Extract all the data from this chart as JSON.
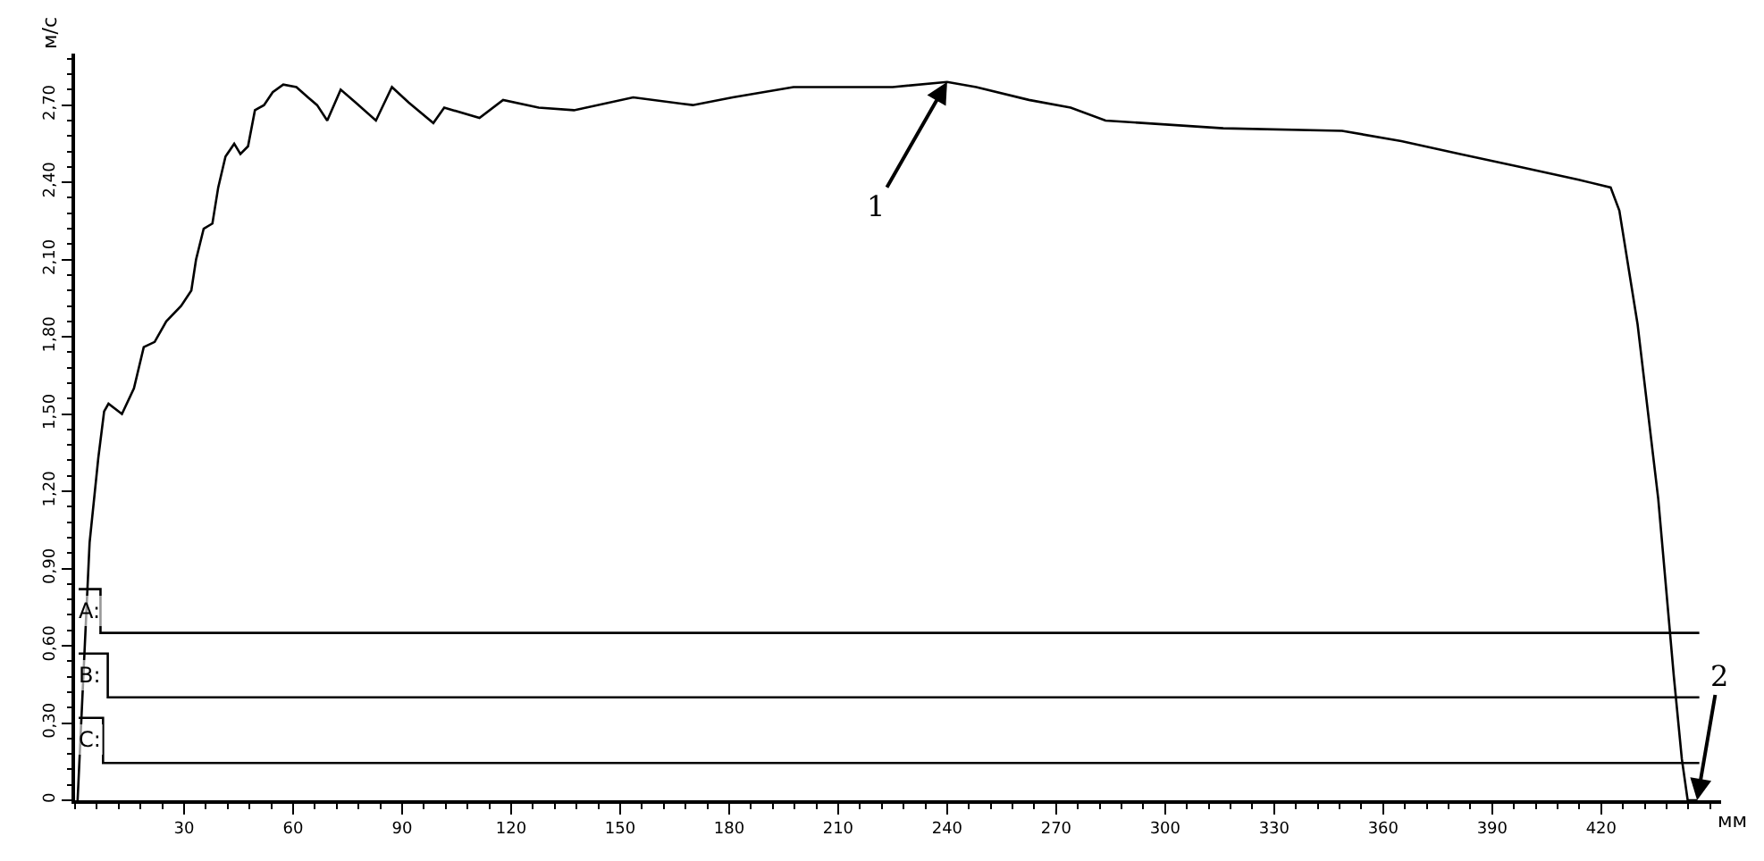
{
  "chart_data": {
    "type": "line",
    "xlabel": "мм",
    "ylabel": "м/с",
    "xlim": [
      0,
      453
    ],
    "ylim": [
      0,
      2.9
    ],
    "xticks": [
      30,
      60,
      90,
      120,
      150,
      180,
      210,
      240,
      270,
      300,
      330,
      360,
      390,
      420
    ],
    "yticks": [
      0,
      {
        "value": 0.3,
        "label": "0,30"
      },
      {
        "value": 0.6,
        "label": "0,60"
      },
      {
        "value": 0.9,
        "label": "0,90"
      },
      {
        "value": 1.2,
        "label": "1,20"
      },
      {
        "value": 1.5,
        "label": "1,50"
      },
      {
        "value": 1.8,
        "label": "1,80"
      },
      {
        "value": 2.1,
        "label": "2,10"
      },
      {
        "value": 2.4,
        "label": "2,40"
      },
      {
        "value": 2.7,
        "label": "2,70"
      }
    ],
    "legend": false,
    "marker": "none",
    "line_style": "solid",
    "series": [
      {
        "color": "#000000",
        "x": [
          0.7,
          4,
          6.4,
          8,
          9.2,
          12.9,
          16.2,
          18.9,
          21.9,
          25.1,
          29.2,
          32,
          33.3,
          35.4,
          37.8,
          39.4,
          41.4,
          43.8,
          45.5,
          47.6,
          49.5,
          52,
          54.4,
          57.3,
          60.9,
          64.1,
          66.6,
          69.4,
          73.1,
          77.2,
          82.8,
          87.2,
          91.8,
          98.6,
          101.6,
          111.3,
          117.8,
          127.6,
          137.3,
          153.6,
          170,
          181,
          197.7,
          212,
          225,
          240,
          248,
          262.5,
          274,
          283.6,
          316,
          348.7,
          365,
          381.2,
          397.5,
          413.8,
          422.6,
          425,
          430,
          435.7,
          440,
          442.2,
          443.8,
          446.4
        ],
        "values": [
          0,
          1.0,
          1.33,
          1.51,
          1.54,
          1.5,
          1.6,
          1.76,
          1.78,
          1.86,
          1.92,
          1.98,
          2.1,
          2.22,
          2.24,
          2.38,
          2.5,
          2.55,
          2.51,
          2.54,
          2.68,
          2.7,
          2.75,
          2.78,
          2.77,
          2.73,
          2.7,
          2.64,
          2.76,
          2.71,
          2.64,
          2.77,
          2.71,
          2.63,
          2.69,
          2.65,
          2.72,
          2.69,
          2.68,
          2.73,
          2.7,
          2.73,
          2.77,
          2.77,
          2.77,
          2.79,
          2.77,
          2.72,
          2.69,
          2.64,
          2.61,
          2.6,
          2.56,
          2.51,
          2.46,
          2.41,
          2.38,
          2.29,
          1.85,
          1.17,
          0.48,
          0.16,
          0,
          0
        ]
      },
      {
        "name": "A:",
        "color": "#000000",
        "x": [
          1,
          7,
          7,
          447
        ],
        "values": [
          0.82,
          0.82,
          0.65,
          0.65
        ]
      },
      {
        "name": "B:",
        "color": "#000000",
        "x": [
          1,
          9,
          9,
          447
        ],
        "values": [
          0.57,
          0.57,
          0.4,
          0.4
        ]
      },
      {
        "name": "C:",
        "color": "#000000",
        "x": [
          1,
          7.7,
          7.7,
          447
        ],
        "values": [
          0.32,
          0.32,
          0.145,
          0.145
        ]
      }
    ],
    "annotations": [
      {
        "text": "1",
        "x": 240,
        "y": 2.79
      },
      {
        "text": "2",
        "x": 446.4,
        "y": 0
      }
    ]
  }
}
